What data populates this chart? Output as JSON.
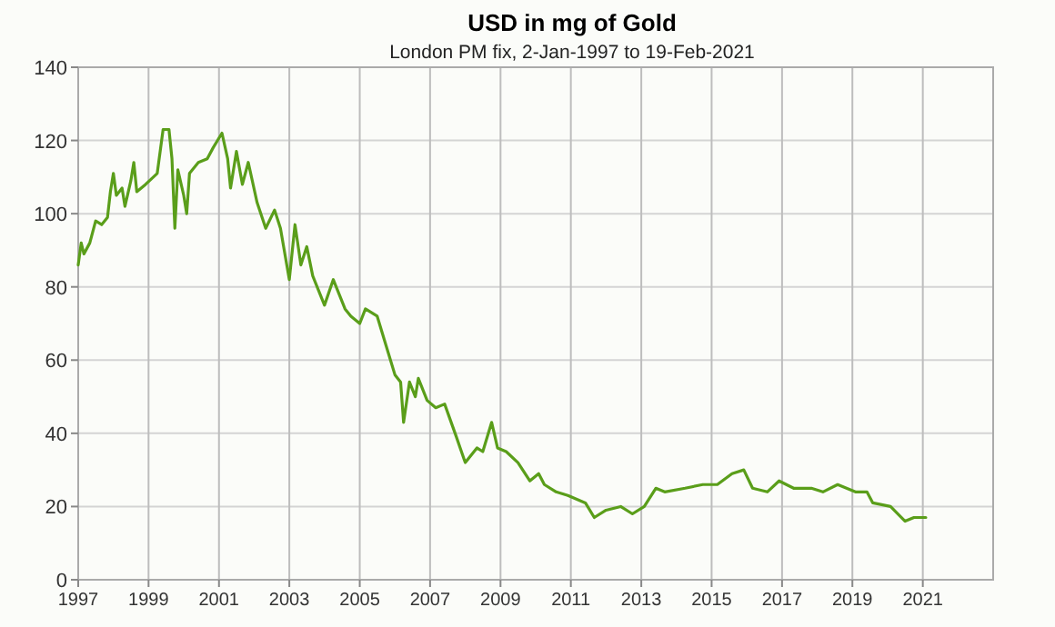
{
  "chart_data": {
    "type": "line",
    "title": "USD in mg of Gold",
    "subtitle": "London PM fix, 2-Jan-1997 to 19-Feb-2021",
    "x": [
      "1997-01",
      "1997-02",
      "1997-03",
      "1997-05",
      "1997-07",
      "1997-09",
      "1997-11",
      "1997-12",
      "1998-01",
      "1998-02",
      "1998-04",
      "1998-05",
      "1998-07",
      "1998-08",
      "1998-09",
      "1998-12",
      "1999-04",
      "1999-06",
      "1999-08",
      "1999-09",
      "1999-10",
      "1999-11",
      "2000-01",
      "2000-02",
      "2000-03",
      "2000-06",
      "2000-09",
      "2000-11",
      "2001-02",
      "2001-04",
      "2001-05",
      "2001-07",
      "2001-09",
      "2001-11",
      "2002-02",
      "2002-05",
      "2002-08",
      "2002-10",
      "2003-01",
      "2003-03",
      "2003-05",
      "2003-07",
      "2003-09",
      "2004-01",
      "2004-04",
      "2004-08",
      "2004-10",
      "2005-01",
      "2005-03",
      "2005-07",
      "2005-10",
      "2006-01",
      "2006-03",
      "2006-04",
      "2006-06",
      "2006-08",
      "2006-09",
      "2006-12",
      "2007-03",
      "2007-06",
      "2007-10",
      "2008-01",
      "2008-05",
      "2008-07",
      "2008-10",
      "2008-12",
      "2009-03",
      "2009-07",
      "2009-11",
      "2010-02",
      "2010-04",
      "2010-08",
      "2010-12",
      "2011-06",
      "2011-09",
      "2012-01",
      "2012-06",
      "2012-10",
      "2013-02",
      "2013-06",
      "2013-09",
      "2014-04",
      "2014-10",
      "2015-03",
      "2015-08",
      "2015-12",
      "2016-03",
      "2016-08",
      "2016-12",
      "2017-05",
      "2017-11",
      "2018-03",
      "2018-08",
      "2019-02",
      "2019-06",
      "2019-08",
      "2020-02",
      "2020-07",
      "2020-10",
      "2021-02"
    ],
    "series": [
      {
        "color": "#5a9e1a",
        "values": [
          86,
          92,
          89,
          92,
          98,
          97,
          99,
          106,
          111,
          105,
          107,
          102,
          109,
          114,
          106,
          108,
          111,
          123,
          123,
          115,
          96,
          112,
          105,
          100,
          111,
          114,
          115,
          118,
          122,
          115,
          107,
          117,
          108,
          114,
          103,
          96,
          101,
          96,
          82,
          97,
          86,
          91,
          83,
          75,
          82,
          74,
          72,
          70,
          74,
          72,
          64,
          56,
          54,
          43,
          54,
          50,
          55,
          49,
          47,
          48,
          39,
          32,
          36,
          35,
          43,
          36,
          35,
          32,
          27,
          29,
          26,
          24,
          23,
          21,
          17,
          19,
          20,
          18,
          20,
          25,
          24,
          25,
          26,
          26,
          29,
          30,
          25,
          24,
          27,
          25,
          25,
          24,
          26,
          24,
          24,
          21,
          20,
          16,
          17,
          17
        ]
      }
    ],
    "xlim": [
      "1997",
      "2023"
    ],
    "xticks": [
      {
        "value": "1997",
        "label": "1997"
      },
      {
        "value": "1999",
        "label": "1999"
      },
      {
        "value": "2001",
        "label": "2001"
      },
      {
        "value": "2003",
        "label": "2003"
      },
      {
        "value": "2005",
        "label": "2005"
      },
      {
        "value": "2007",
        "label": "2007"
      },
      {
        "value": "2009",
        "label": "2009"
      },
      {
        "value": "2011",
        "label": "2011"
      },
      {
        "value": "2013",
        "label": "2013"
      },
      {
        "value": "2015",
        "label": "2015"
      },
      {
        "value": "2017",
        "label": "2017"
      },
      {
        "value": "2019",
        "label": "2019"
      },
      {
        "value": "2021",
        "label": "2021"
      }
    ],
    "ylim": [
      0,
      140
    ],
    "yticks": [
      0,
      20,
      40,
      60,
      80,
      100,
      120,
      140
    ],
    "grid": true
  }
}
